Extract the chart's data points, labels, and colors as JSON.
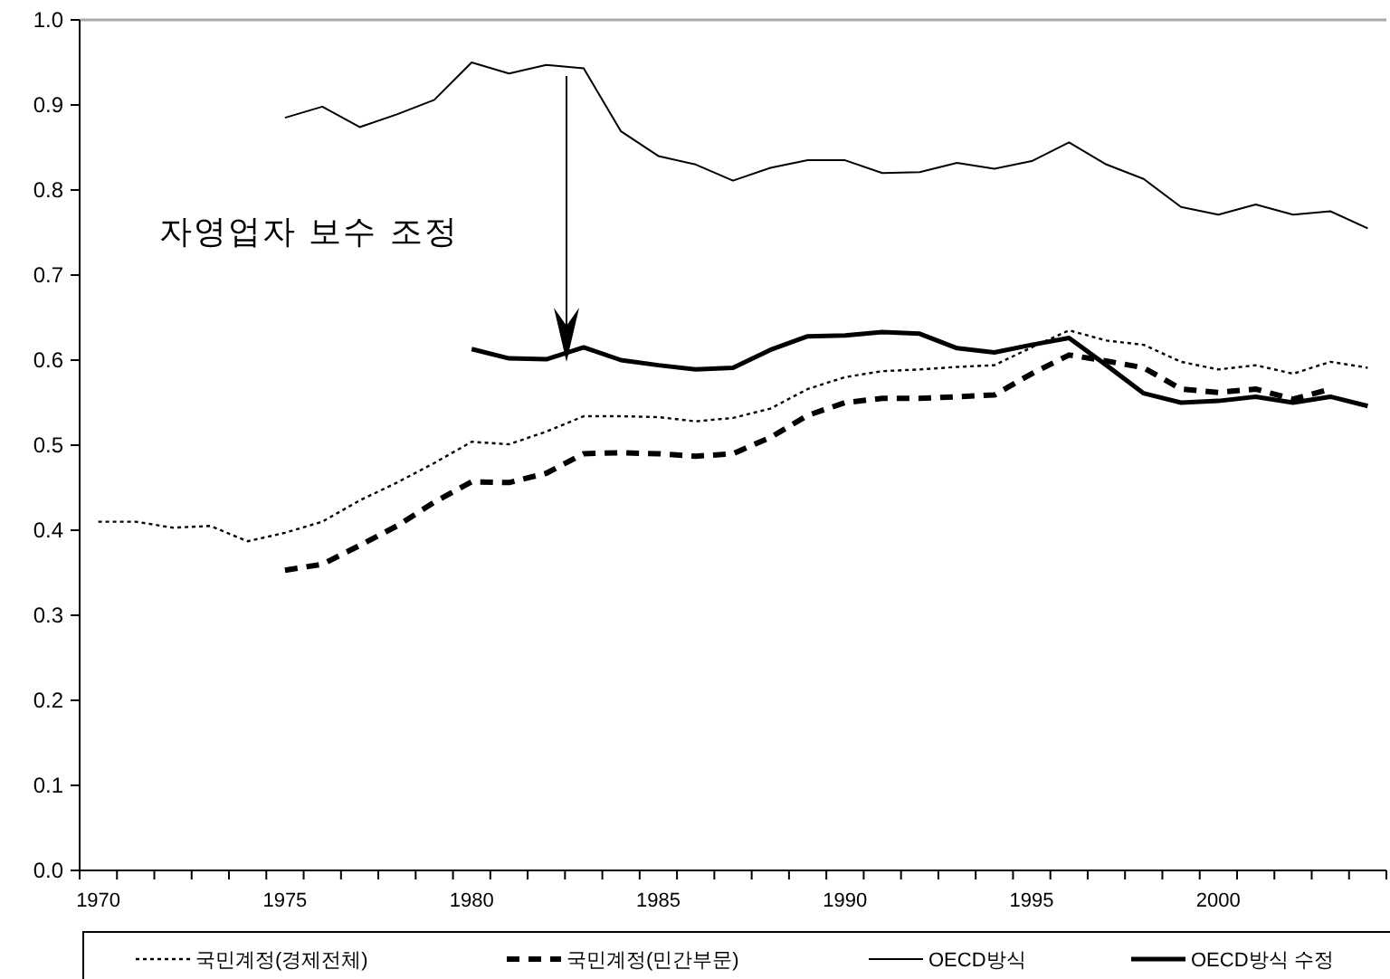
{
  "chart_data": {
    "type": "line",
    "categories": [
      "1970",
      null,
      null,
      null,
      null,
      "1975",
      null,
      null,
      null,
      null,
      "1980",
      null,
      null,
      null,
      null,
      "1985",
      null,
      null,
      null,
      null,
      "1990",
      null,
      null,
      null,
      null,
      "1995",
      null,
      null,
      null,
      null,
      "2000",
      null,
      null,
      null,
      null
    ],
    "series": [
      {
        "name": "국민계정(경제전체)",
        "color": "#000000",
        "line_style": "dotted",
        "values": [
          0.41,
          0.41,
          0.403,
          0.405,
          0.387,
          0.397,
          0.41,
          0.435,
          0.456,
          0.479,
          0.504,
          0.501,
          0.516,
          0.534,
          0.534,
          0.533,
          0.528,
          0.532,
          0.543,
          0.566,
          0.58,
          0.587,
          0.589,
          0.592,
          0.594,
          0.615,
          0.635,
          0.623,
          0.618,
          0.598,
          0.589,
          0.594,
          0.584,
          0.598,
          0.591
        ]
      },
      {
        "name": "국민계정(민간부문)",
        "color": "#000000",
        "line_style": "dashed",
        "values": [
          null,
          null,
          null,
          null,
          null,
          0.353,
          0.36,
          0.382,
          0.405,
          0.433,
          0.457,
          0.456,
          0.467,
          0.49,
          0.491,
          0.49,
          0.487,
          0.49,
          0.509,
          0.535,
          0.55,
          0.555,
          0.555,
          0.557,
          0.559,
          0.584,
          0.606,
          0.599,
          0.591,
          0.566,
          0.562,
          0.566,
          0.554,
          0.566,
          null
        ]
      },
      {
        "name": "OECD방식",
        "color": "#000000",
        "line_style": "solid",
        "values": [
          null,
          null,
          null,
          null,
          null,
          0.885,
          0.898,
          0.874,
          0.889,
          0.906,
          0.95,
          0.937,
          0.947,
          0.943,
          0.869,
          0.84,
          0.83,
          0.811,
          0.826,
          0.835,
          0.835,
          0.82,
          0.821,
          0.832,
          0.825,
          0.834,
          0.856,
          0.83,
          0.813,
          0.78,
          0.771,
          0.783,
          0.771,
          0.775,
          0.755
        ]
      },
      {
        "name": "OECD방식 수정",
        "color": "#000000",
        "line_style": "solid",
        "values": [
          null,
          null,
          null,
          null,
          null,
          null,
          null,
          null,
          null,
          null,
          0.613,
          0.602,
          0.601,
          0.615,
          0.6,
          0.594,
          0.589,
          0.591,
          0.612,
          0.628,
          0.629,
          0.633,
          0.631,
          0.614,
          0.609,
          0.618,
          0.626,
          0.594,
          0.561,
          0.55,
          0.552,
          0.557,
          0.55,
          0.557,
          0.546
        ]
      }
    ],
    "ylim": [
      0,
      1
    ],
    "yticks": [
      {
        "value": 0,
        "label": "0.0"
      },
      {
        "value": 0.1,
        "label": "0.1"
      },
      {
        "value": 0.2,
        "label": "0.2"
      },
      {
        "value": 0.3,
        "label": "0.3"
      },
      {
        "value": 0.4,
        "label": "0.4"
      },
      {
        "value": 0.5,
        "label": "0.5"
      },
      {
        "value": 0.6,
        "label": "0.6"
      },
      {
        "value": 0.7,
        "label": "0.7"
      },
      {
        "value": 0.8,
        "label": "0.8"
      },
      {
        "value": 0.9,
        "label": "0.9"
      },
      {
        "value": 1,
        "label": "1.0"
      }
    ],
    "annotations": [
      "자영업자 보수 조정"
    ],
    "legend": "bottom",
    "grid": false
  }
}
